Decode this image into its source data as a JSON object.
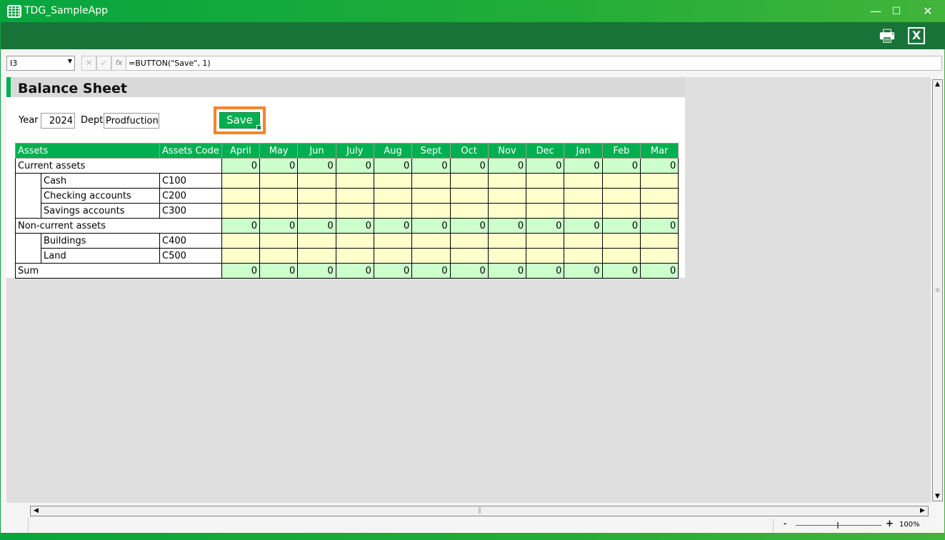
{
  "window": {
    "title": "TDG_SampleApp",
    "minimize": "—",
    "maximize": "☐",
    "close": "✕"
  },
  "toolbar": {
    "print_icon": "🖶",
    "export_icon": "X"
  },
  "formula_bar": {
    "cell_ref": "I3",
    "cancel": "✕",
    "confirm": "✓",
    "fx": "fx",
    "formula": "=BUTTON(\"Save\", 1)"
  },
  "sheet": {
    "title": "Balance Sheet",
    "year_label": "Year",
    "year_value": "2024",
    "dept_label": "Dept",
    "dept_value": "Prodfuction",
    "save_label": "Save",
    "headers": {
      "assets": "Assets",
      "code": "Assets Code",
      "months": [
        "April",
        "May",
        "Jun",
        "July",
        "Aug",
        "Sept",
        "Oct",
        "Nov",
        "Dec",
        "Jan",
        "Feb",
        "Mar"
      ]
    },
    "rows": [
      {
        "type": "group",
        "label": "Current assets",
        "values": [
          "0",
          "0",
          "0",
          "0",
          "0",
          "0",
          "0",
          "0",
          "0",
          "0",
          "0",
          "0"
        ]
      },
      {
        "type": "item",
        "label": "Cash",
        "code": "C100"
      },
      {
        "type": "item",
        "label": "Checking accounts",
        "code": "C200"
      },
      {
        "type": "item",
        "label": "Savings accounts",
        "code": "C300"
      },
      {
        "type": "group",
        "label": "Non-current assets",
        "values": [
          "0",
          "0",
          "0",
          "0",
          "0",
          "0",
          "0",
          "0",
          "0",
          "0",
          "0",
          "0"
        ]
      },
      {
        "type": "item",
        "label": "Buildings",
        "code": "C400"
      },
      {
        "type": "item",
        "label": "Land",
        "code": "C500"
      },
      {
        "type": "sum",
        "label": "Sum",
        "values": [
          "0",
          "0",
          "0",
          "0",
          "0",
          "0",
          "0",
          "0",
          "0",
          "0",
          "0",
          "0"
        ]
      }
    ],
    "colors": {
      "header": "#00b050",
      "formula_cell": "#ccffcc",
      "input_cell": "#ffffcc",
      "highlight": "#f7842a"
    }
  },
  "status": {
    "zoom_minus": "-",
    "zoom_plus": "+",
    "zoom_level": "100%",
    "zoom_value_percent": 100
  }
}
